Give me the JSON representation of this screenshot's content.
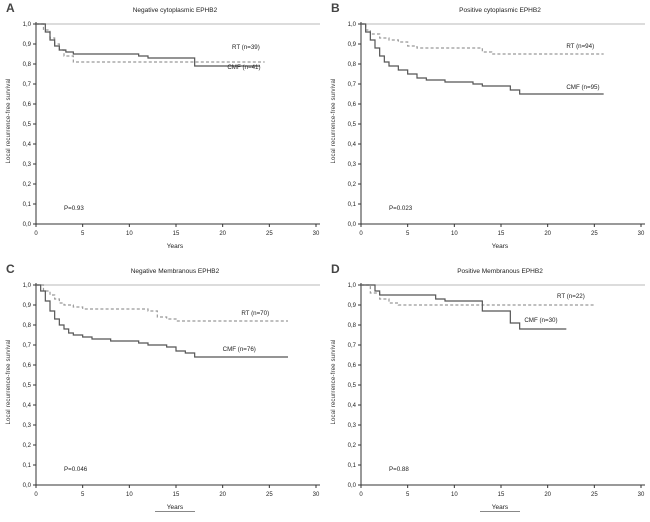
{
  "figure": {
    "background": "#ffffff"
  },
  "chart_data": [
    {
      "type": "line",
      "letter": "A",
      "title": "Negative cytoplasmic EPHB2",
      "xlabel": "Years",
      "ylabel": "Local recurrence-free survival",
      "xlim": [
        0,
        30
      ],
      "ylim": [
        0,
        1
      ],
      "x_ticks": [
        0,
        5,
        10,
        15,
        20,
        25,
        30
      ],
      "y_ticks": [
        0,
        0.1,
        0.2,
        0.3,
        0.4,
        0.5,
        0.6,
        0.7,
        0.8,
        0.9,
        1.0
      ],
      "y_tick_labels": [
        "0,0",
        "0,1",
        "0,2",
        "0,3",
        "0,4",
        "0,5",
        "0,6",
        "0,7",
        "0,8",
        "0,9",
        "1,0"
      ],
      "p_value": "P=0.93",
      "p_pos": [
        3,
        0.07
      ],
      "grid_top_color": "#c8c8c8",
      "series": [
        {
          "name": "RT",
          "label": "RT (n=39)",
          "line": "dashed",
          "color": "#999999",
          "label_pos": [
            21,
            0.875
          ],
          "points": [
            [
              0,
              1
            ],
            [
              0.8,
              0.97
            ],
            [
              1.5,
              0.93
            ],
            [
              2,
              0.9
            ],
            [
              2.5,
              0.87
            ],
            [
              3,
              0.84
            ],
            [
              4,
              0.81
            ],
            [
              24.5,
              0.81
            ]
          ]
        },
        {
          "name": "CMF",
          "label": "CMF (n=41)",
          "line": "solid",
          "color": "#555555",
          "label_pos": [
            20.5,
            0.775
          ],
          "points": [
            [
              0,
              1
            ],
            [
              1,
              0.96
            ],
            [
              1.5,
              0.92
            ],
            [
              2,
              0.89
            ],
            [
              2.5,
              0.87
            ],
            [
              3.2,
              0.86
            ],
            [
              4,
              0.85
            ],
            [
              11,
              0.84
            ],
            [
              12,
              0.83
            ],
            [
              17,
              0.79
            ],
            [
              24,
              0.79
            ]
          ]
        }
      ]
    },
    {
      "type": "line",
      "letter": "B",
      "title": "Positive cytoplasmic EPHB2",
      "xlabel": "Years",
      "ylabel": "Local recurrence-free survival",
      "xlim": [
        0,
        30
      ],
      "ylim": [
        0,
        1
      ],
      "x_ticks": [
        0,
        5,
        10,
        15,
        20,
        25,
        30
      ],
      "y_ticks": [
        0,
        0.1,
        0.2,
        0.3,
        0.4,
        0.5,
        0.6,
        0.7,
        0.8,
        0.9,
        1.0
      ],
      "y_tick_labels": [
        "0,0",
        "0,1",
        "0,2",
        "0,3",
        "0,4",
        "0,5",
        "0,6",
        "0,7",
        "0,8",
        "0,9",
        "1,0"
      ],
      "p_value": "P=0.023",
      "p_pos": [
        3,
        0.07
      ],
      "grid_top_color": "#c8c8c8",
      "series": [
        {
          "name": "RT",
          "label": "RT (n=94)",
          "line": "dashed",
          "color": "#999999",
          "label_pos": [
            22,
            0.88
          ],
          "points": [
            [
              0,
              1
            ],
            [
              0.5,
              0.97
            ],
            [
              1,
              0.95
            ],
            [
              2,
              0.93
            ],
            [
              3,
              0.92
            ],
            [
              4,
              0.91
            ],
            [
              5,
              0.89
            ],
            [
              6,
              0.88
            ],
            [
              13,
              0.86
            ],
            [
              14,
              0.85
            ],
            [
              26,
              0.85
            ]
          ]
        },
        {
          "name": "CMF",
          "label": "CMF (n=95)",
          "line": "solid",
          "color": "#555555",
          "label_pos": [
            22,
            0.675
          ],
          "points": [
            [
              0,
              1
            ],
            [
              0.5,
              0.96
            ],
            [
              1,
              0.92
            ],
            [
              1.5,
              0.88
            ],
            [
              2,
              0.84
            ],
            [
              2.5,
              0.81
            ],
            [
              3,
              0.79
            ],
            [
              4,
              0.77
            ],
            [
              5,
              0.75
            ],
            [
              6,
              0.73
            ],
            [
              7,
              0.72
            ],
            [
              9,
              0.71
            ],
            [
              12,
              0.7
            ],
            [
              13,
              0.69
            ],
            [
              16,
              0.67
            ],
            [
              17,
              0.65
            ],
            [
              26,
              0.65
            ]
          ]
        }
      ]
    },
    {
      "type": "line",
      "letter": "C",
      "title": "Negative Membranous EPHB2",
      "xlabel": "Years",
      "ylabel": "Local recurrence-free survival",
      "xlim": [
        0,
        30
      ],
      "ylim": [
        0,
        1
      ],
      "x_ticks": [
        0,
        5,
        10,
        15,
        20,
        25,
        30
      ],
      "y_ticks": [
        0,
        0.1,
        0.2,
        0.3,
        0.4,
        0.5,
        0.6,
        0.7,
        0.8,
        0.9,
        1.0
      ],
      "y_tick_labels": [
        "0,0",
        "0,1",
        "0,2",
        "0,3",
        "0,4",
        "0,5",
        "0,6",
        "0,7",
        "0,8",
        "0,9",
        "1,0"
      ],
      "p_value": "P=0.046",
      "p_pos": [
        3,
        0.07
      ],
      "grid_top_color": "#c8c8c8",
      "series": [
        {
          "name": "RT",
          "label": "RT (n=70)",
          "line": "dashed",
          "color": "#999999",
          "label_pos": [
            22,
            0.85
          ],
          "points": [
            [
              0,
              1
            ],
            [
              0.8,
              0.97
            ],
            [
              1.5,
              0.95
            ],
            [
              2,
              0.93
            ],
            [
              2.5,
              0.91
            ],
            [
              3,
              0.9
            ],
            [
              4,
              0.89
            ],
            [
              5,
              0.88
            ],
            [
              12,
              0.87
            ],
            [
              13,
              0.84
            ],
            [
              14,
              0.83
            ],
            [
              15,
              0.82
            ],
            [
              27,
              0.82
            ]
          ]
        },
        {
          "name": "CMF",
          "label": "CMF (n=76)",
          "line": "solid",
          "color": "#555555",
          "label_pos": [
            20,
            0.67
          ],
          "points": [
            [
              0,
              1
            ],
            [
              0.5,
              0.97
            ],
            [
              1,
              0.92
            ],
            [
              1.5,
              0.87
            ],
            [
              2,
              0.83
            ],
            [
              2.5,
              0.8
            ],
            [
              3,
              0.78
            ],
            [
              3.5,
              0.76
            ],
            [
              4,
              0.75
            ],
            [
              5,
              0.74
            ],
            [
              6,
              0.73
            ],
            [
              8,
              0.72
            ],
            [
              11,
              0.71
            ],
            [
              12,
              0.7
            ],
            [
              14,
              0.69
            ],
            [
              15,
              0.67
            ],
            [
              16,
              0.66
            ],
            [
              17,
              0.64
            ],
            [
              27,
              0.64
            ]
          ]
        }
      ]
    },
    {
      "type": "line",
      "letter": "D",
      "title": "Positive Membranous EPHB2",
      "xlabel": "Years",
      "ylabel": "Local recurrence-free survival",
      "xlim": [
        0,
        30
      ],
      "ylim": [
        0,
        1
      ],
      "x_ticks": [
        0,
        5,
        10,
        15,
        20,
        25,
        30
      ],
      "y_ticks": [
        0,
        0.1,
        0.2,
        0.3,
        0.4,
        0.5,
        0.6,
        0.7,
        0.8,
        0.9,
        1.0
      ],
      "y_tick_labels": [
        "0,0",
        "0,1",
        "0,2",
        "0,3",
        "0,4",
        "0,5",
        "0,6",
        "0,7",
        "0,8",
        "0,9",
        "1,0"
      ],
      "p_value": "P=0.88",
      "p_pos": [
        3,
        0.07
      ],
      "grid_top_color": "#c8c8c8",
      "series": [
        {
          "name": "RT",
          "label": "RT (n=22)",
          "line": "dashed",
          "color": "#999999",
          "label_pos": [
            21,
            0.935
          ],
          "points": [
            [
              0,
              1
            ],
            [
              1,
              0.96
            ],
            [
              2,
              0.93
            ],
            [
              3,
              0.91
            ],
            [
              4,
              0.9
            ],
            [
              25,
              0.9
            ]
          ]
        },
        {
          "name": "CMF",
          "label": "CMF (n=30)",
          "line": "solid",
          "color": "#555555",
          "label_pos": [
            17.5,
            0.815
          ],
          "points": [
            [
              0,
              1
            ],
            [
              1.5,
              0.97
            ],
            [
              2,
              0.95
            ],
            [
              8,
              0.93
            ],
            [
              9,
              0.92
            ],
            [
              13,
              0.87
            ],
            [
              16,
              0.81
            ],
            [
              17,
              0.78
            ],
            [
              22,
              0.78
            ]
          ]
        }
      ]
    }
  ]
}
